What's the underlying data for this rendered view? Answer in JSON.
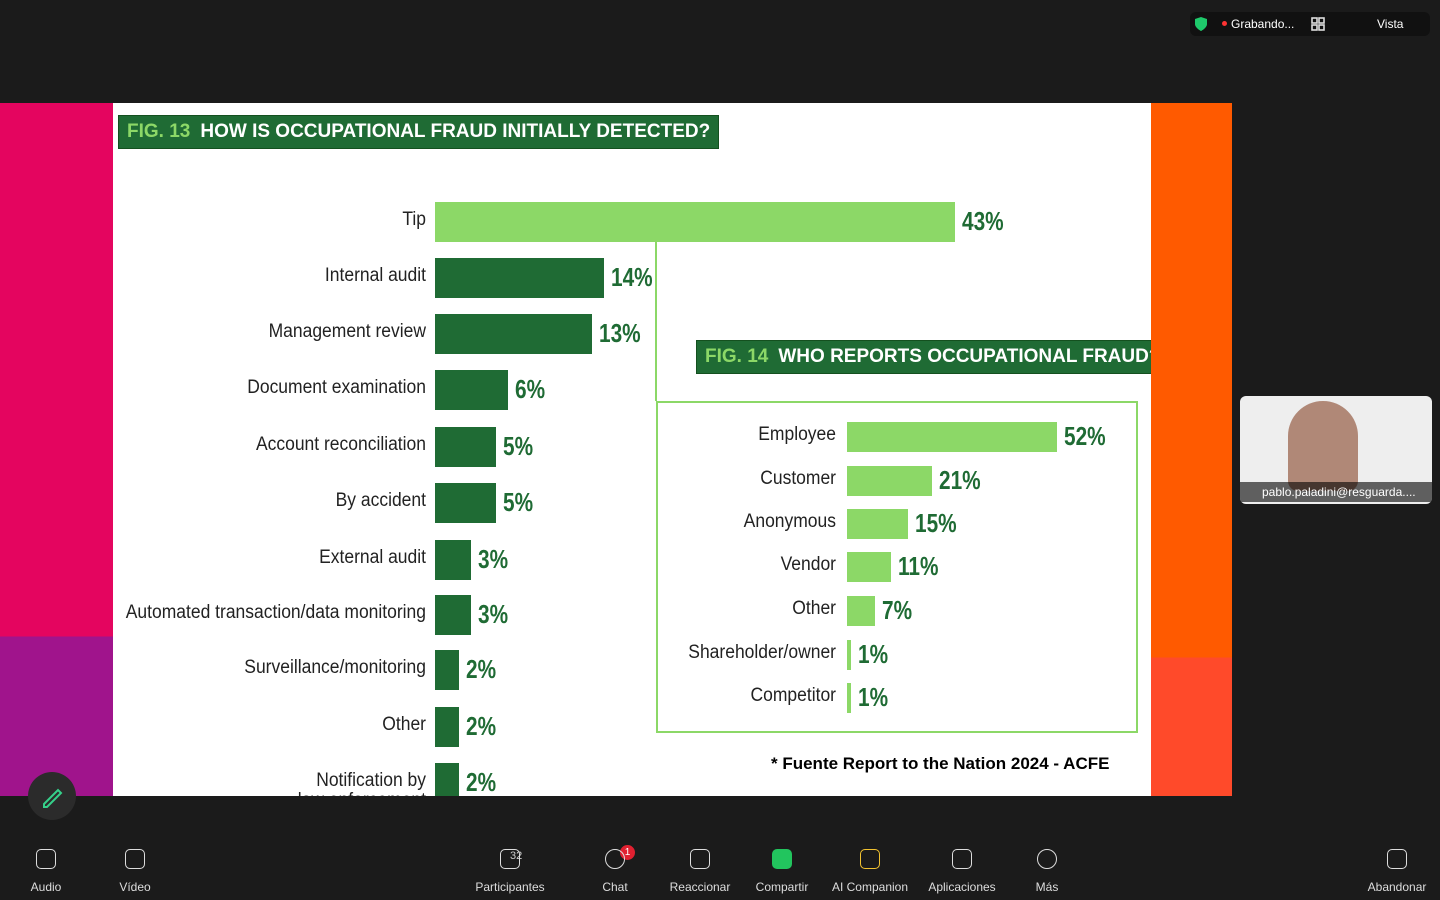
{
  "meeting": {
    "recording": "Grabando...",
    "view": "Vista",
    "participant_name": "pablo.paladini@resguarda....",
    "participant_count": 32,
    "chat_badge": 1
  },
  "toolbar": {
    "labels": [
      "Audio",
      "Vídeo",
      "Participantes",
      "Chat",
      "Reaccionar",
      "Compartir",
      "AI Companion",
      "Aplicaciones",
      "Más",
      "Abandonar"
    ]
  },
  "slide": {
    "footnote": "* Fuente Report to the Nation 2024 - ACFE"
  },
  "chart_data": [
    {
      "type": "bar",
      "orientation": "horizontal",
      "figure": "FIG. 13",
      "title": "HOW IS OCCUPATIONAL FRAUD INITIALLY DETECTED?",
      "categories": [
        "Tip",
        "Internal audit",
        "Management review",
        "Document examination",
        "Account reconciliation",
        "By accident",
        "External audit",
        "Automated transaction/data monitoring",
        "Surveillance/monitoring",
        "Other",
        "Notification by\nlaw enforcement"
      ],
      "values": [
        43,
        14,
        13,
        6,
        5,
        5,
        3,
        3,
        2,
        2,
        2
      ],
      "value_labels": [
        "43%",
        "14%",
        "13%",
        "6%",
        "5%",
        "5%",
        "3%",
        "3%",
        "2%",
        "2%",
        "2%"
      ],
      "colors": [
        "#8cd867",
        "#1f6b34",
        "#1f6b34",
        "#1f6b34",
        "#1f6b34",
        "#1f6b34",
        "#1f6b34",
        "#1f6b34",
        "#1f6b34",
        "#1f6b34",
        "#1f6b34"
      ]
    },
    {
      "type": "bar",
      "orientation": "horizontal",
      "figure": "FIG. 14",
      "title": "WHO REPORTS OCCUPATIONAL FRAUD?",
      "categories": [
        "Employee",
        "Customer",
        "Anonymous",
        "Vendor",
        "Other",
        "Shareholder/owner",
        "Competitor"
      ],
      "values": [
        52,
        21,
        15,
        11,
        7,
        1,
        1
      ],
      "value_labels": [
        "52%",
        "21%",
        "15%",
        "11%",
        "7%",
        "1%",
        "1%"
      ],
      "colors": [
        "#8cd867",
        "#8cd867",
        "#8cd867",
        "#8cd867",
        "#8cd867",
        "#8cd867",
        "#8cd867"
      ]
    }
  ]
}
